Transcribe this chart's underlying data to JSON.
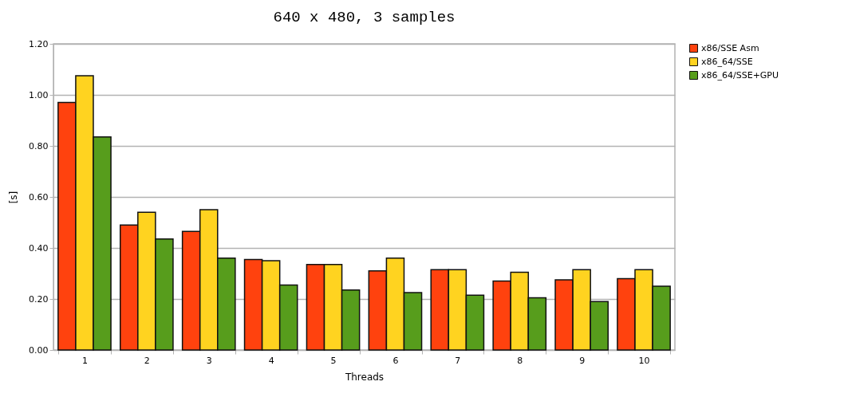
{
  "chart_data": {
    "type": "bar",
    "title": "640 x 480, 3 samples",
    "xlabel": "Threads",
    "ylabel": "[s]",
    "categories": [
      "1",
      "2",
      "3",
      "4",
      "5",
      "6",
      "7",
      "8",
      "9",
      "10"
    ],
    "series": [
      {
        "name": "x86/SSE Asm",
        "color": "#ff420e",
        "values": [
          0.97,
          0.49,
          0.465,
          0.355,
          0.335,
          0.31,
          0.315,
          0.27,
          0.275,
          0.28
        ]
      },
      {
        "name": "x86_64/SSE",
        "color": "#ffd320",
        "values": [
          1.075,
          0.54,
          0.55,
          0.35,
          0.335,
          0.36,
          0.315,
          0.305,
          0.315,
          0.315
        ]
      },
      {
        "name": "x86_64/SSE+GPU",
        "color": "#579d1c",
        "values": [
          0.835,
          0.435,
          0.36,
          0.255,
          0.235,
          0.225,
          0.215,
          0.205,
          0.19,
          0.25
        ]
      }
    ],
    "ylim": [
      0,
      1.2
    ],
    "yticks": [
      {
        "value": 0,
        "label": "0.00"
      },
      {
        "value": 0.2,
        "label": "0.20"
      },
      {
        "value": 0.4,
        "label": "0.40"
      },
      {
        "value": 0.6,
        "label": "0.60"
      },
      {
        "value": 0.8,
        "label": "0.80"
      },
      {
        "value": 1,
        "label": "1.00"
      },
      {
        "value": 1.2,
        "label": "1.20"
      }
    ],
    "grid": "y",
    "legend": "right"
  }
}
